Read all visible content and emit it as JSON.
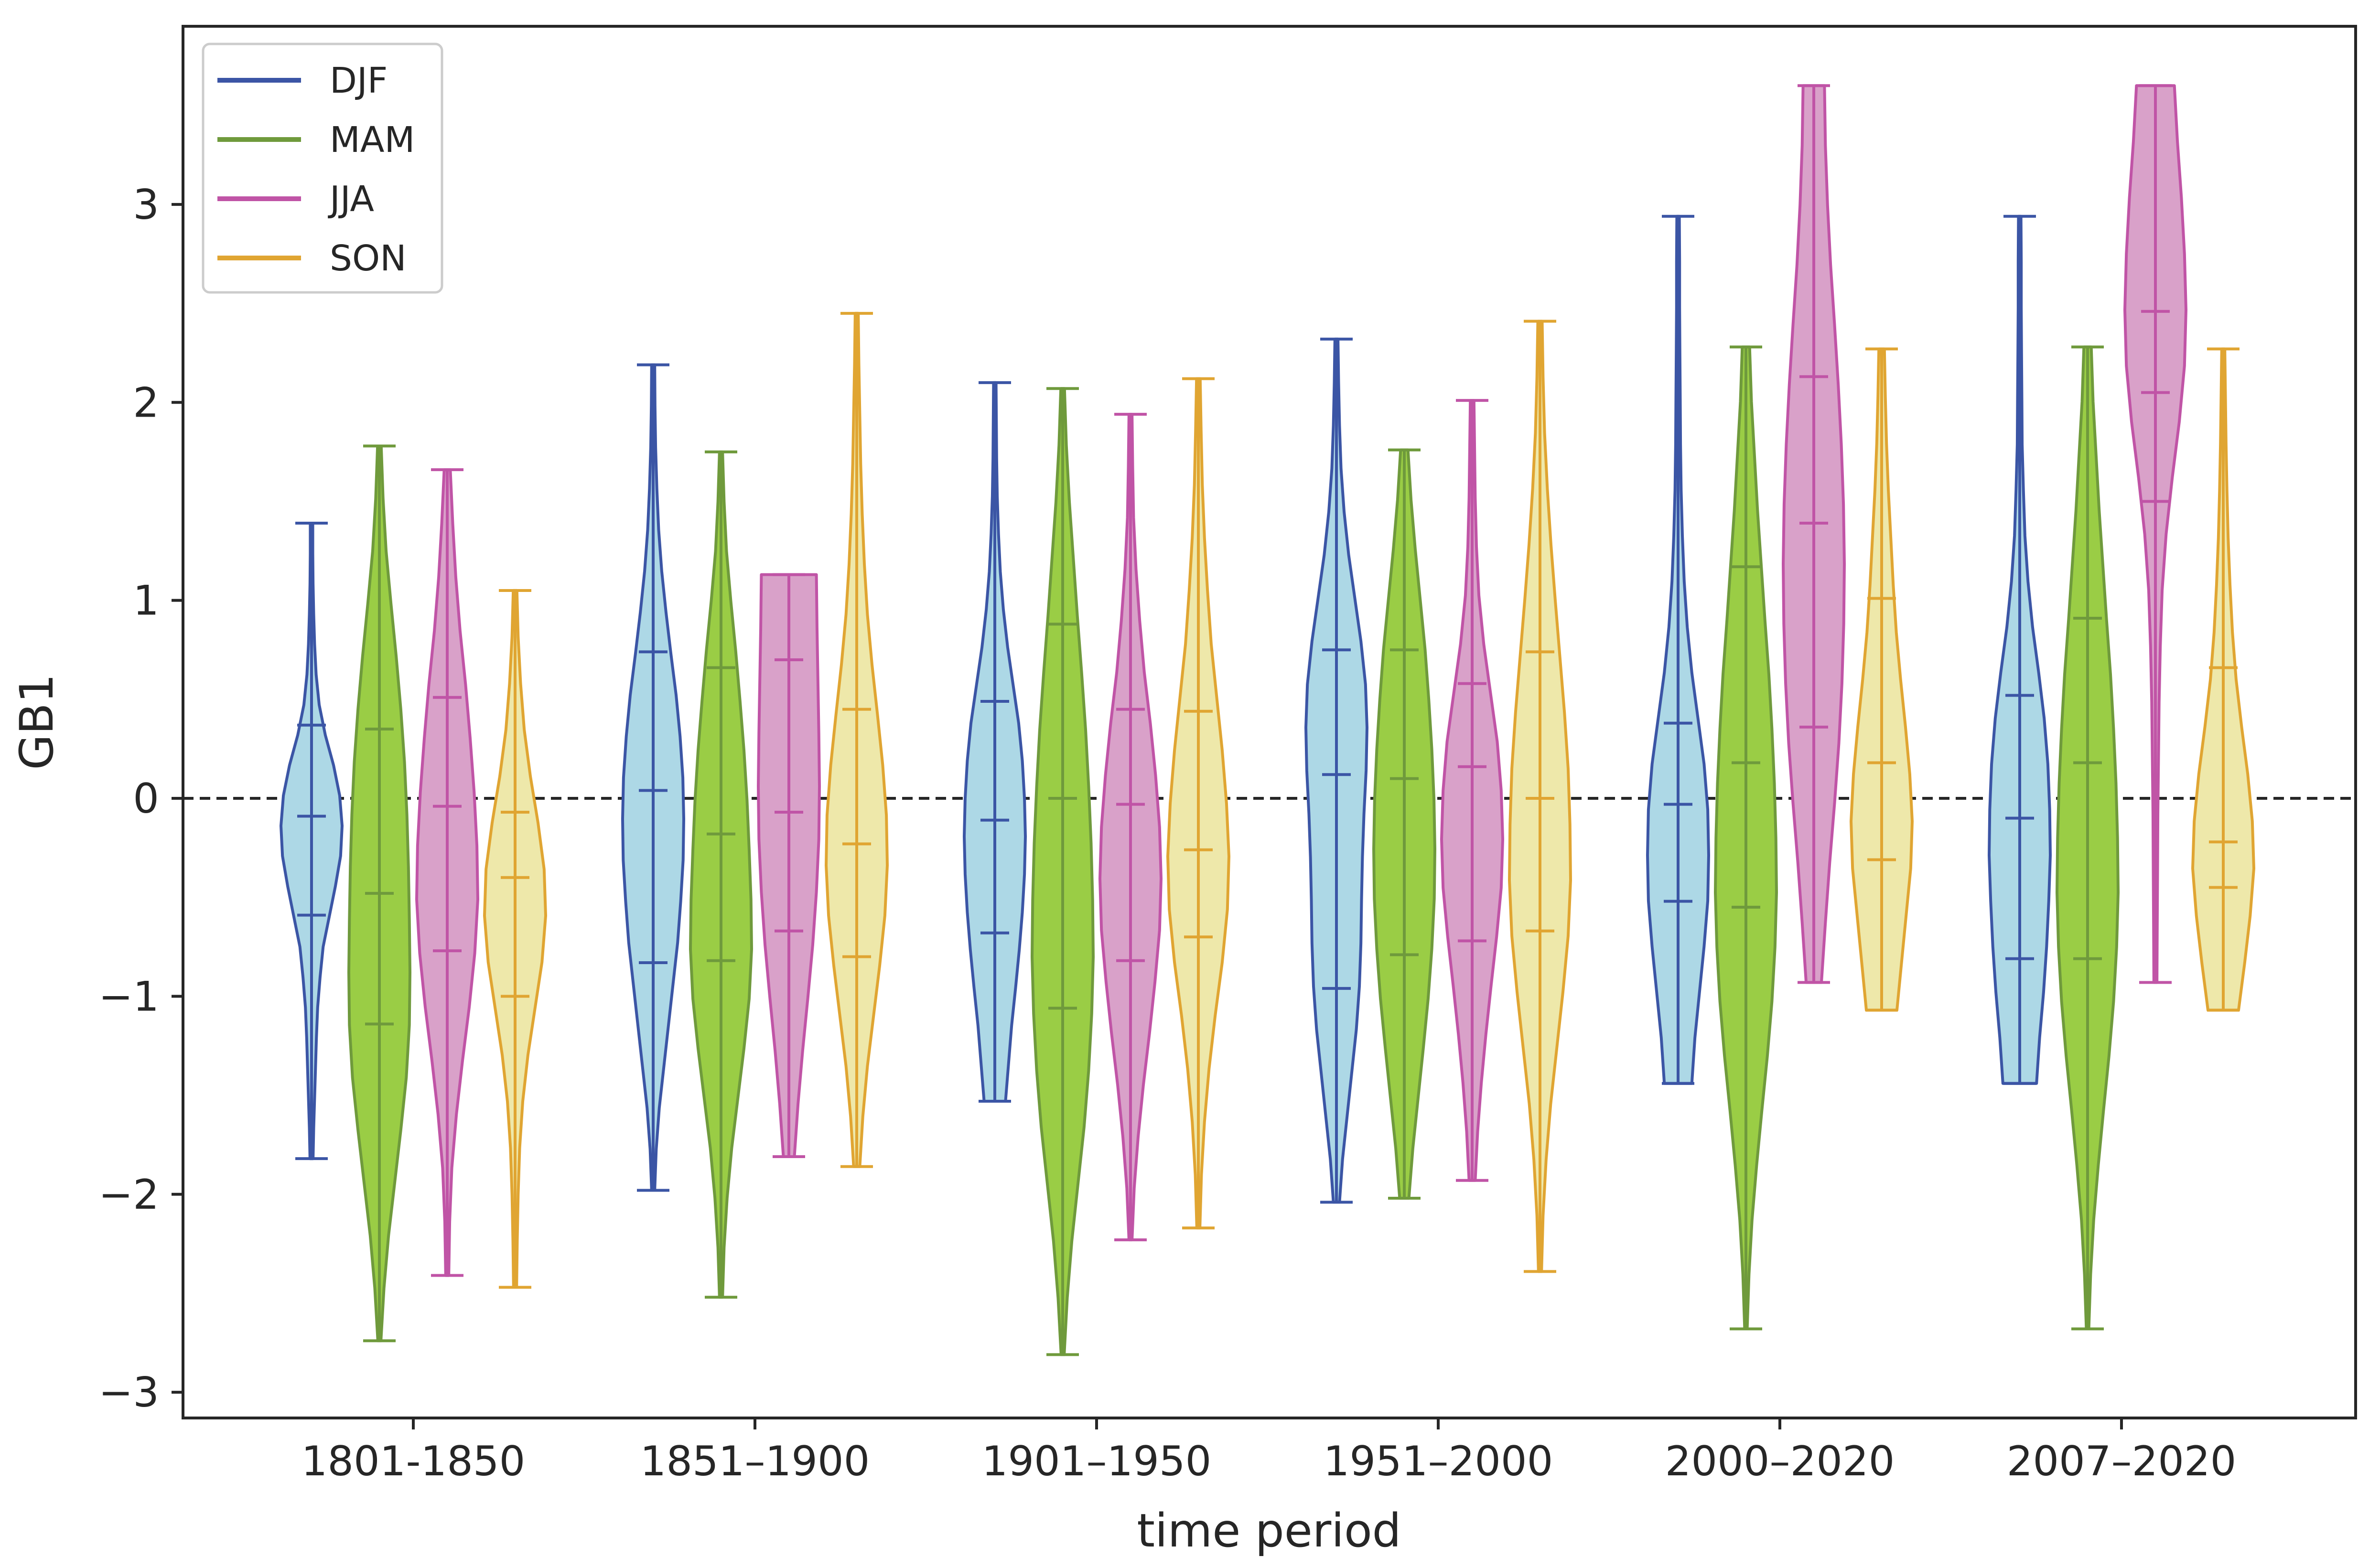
{
  "chart_data": {
    "type": "violin",
    "title": "",
    "xlabel": "time period",
    "ylabel": "GB1",
    "ylim": [
      -3.13,
      3.9
    ],
    "yticks": [
      -3,
      -2,
      -1,
      0,
      1,
      2,
      3
    ],
    "ytick_labels": [
      "−3",
      "−2",
      "−1",
      "0",
      "1",
      "2",
      "3"
    ],
    "reference_line": 0,
    "legend_position": "top-left",
    "categories": [
      "1801-1850",
      "1851–1900",
      "1901–1950",
      "1951–2000",
      "2000–2020",
      "2007–2020"
    ],
    "series": [
      {
        "name": "DJF",
        "line_color": "#3b55a5",
        "fill_color": "#add8e6",
        "violins": [
          {
            "min": -1.82,
            "max": 1.39,
            "q1": -0.59,
            "median": -0.09,
            "q3": 0.37,
            "profile": [
              0.05,
              0.07,
              0.1,
              0.13,
              0.16,
              0.2,
              0.28,
              0.38,
              0.58,
              0.78,
              0.95,
              1.0,
              0.92,
              0.72,
              0.45,
              0.25,
              0.15,
              0.1,
              0.07,
              0.05,
              0.04,
              0.04
            ]
          },
          {
            "min": -1.98,
            "max": 2.19,
            "q1": -0.83,
            "median": 0.04,
            "q3": 0.74,
            "profile": [
              0.05,
              0.1,
              0.2,
              0.35,
              0.5,
              0.65,
              0.8,
              0.9,
              0.98,
              1.0,
              0.97,
              0.88,
              0.75,
              0.58,
              0.42,
              0.28,
              0.18,
              0.12,
              0.08,
              0.06,
              0.05
            ]
          },
          {
            "min": -1.53,
            "max": 2.1,
            "q1": -0.68,
            "median": -0.11,
            "q3": 0.49,
            "profile": [
              0.35,
              0.45,
              0.55,
              0.68,
              0.8,
              0.9,
              0.97,
              1.0,
              0.97,
              0.9,
              0.78,
              0.6,
              0.42,
              0.28,
              0.18,
              0.12,
              0.08,
              0.06,
              0.05,
              0.04
            ]
          },
          {
            "min": -2.04,
            "max": 2.32,
            "q1": -0.96,
            "median": 0.12,
            "q3": 0.75,
            "profile": [
              0.1,
              0.2,
              0.35,
              0.5,
              0.65,
              0.75,
              0.8,
              0.82,
              0.85,
              0.9,
              0.97,
              1.0,
              0.95,
              0.8,
              0.6,
              0.4,
              0.25,
              0.15,
              0.1,
              0.07,
              0.05
            ]
          },
          {
            "min": -1.44,
            "max": 2.94,
            "q1": -0.52,
            "median": -0.03,
            "q3": 0.38,
            "profile": [
              0.45,
              0.55,
              0.7,
              0.85,
              0.97,
              1.0,
              0.97,
              0.85,
              0.65,
              0.45,
              0.3,
              0.2,
              0.14,
              0.1,
              0.08,
              0.07,
              0.06,
              0.05,
              0.05,
              0.04
            ]
          },
          {
            "min": -1.44,
            "max": 2.94,
            "q1": -0.81,
            "median": -0.1,
            "q3": 0.52,
            "profile": [
              0.55,
              0.65,
              0.78,
              0.88,
              0.95,
              1.0,
              0.98,
              0.92,
              0.8,
              0.62,
              0.42,
              0.27,
              0.17,
              0.12,
              0.08,
              0.07,
              0.06,
              0.05,
              0.05,
              0.04
            ]
          }
        ]
      },
      {
        "name": "MAM",
        "line_color": "#6f9a3c",
        "fill_color": "#9acd45",
        "violins": [
          {
            "min": -2.74,
            "max": 1.78,
            "q1": -1.14,
            "median": -0.48,
            "q3": 0.35,
            "profile": [
              0.05,
              0.15,
              0.3,
              0.5,
              0.7,
              0.88,
              0.98,
              1.0,
              0.98,
              0.95,
              0.9,
              0.82,
              0.7,
              0.55,
              0.38,
              0.22,
              0.12,
              0.06
            ]
          },
          {
            "min": -2.52,
            "max": 1.75,
            "q1": -0.82,
            "median": -0.18,
            "q3": 0.66,
            "profile": [
              0.05,
              0.1,
              0.2,
              0.35,
              0.55,
              0.75,
              0.92,
              1.0,
              0.98,
              0.92,
              0.85,
              0.75,
              0.62,
              0.48,
              0.32,
              0.18,
              0.1,
              0.05
            ]
          },
          {
            "min": -2.81,
            "max": 2.07,
            "q1": -1.06,
            "median": 0.0,
            "q3": 0.88,
            "profile": [
              0.05,
              0.15,
              0.3,
              0.5,
              0.7,
              0.85,
              0.95,
              1.0,
              0.98,
              0.93,
              0.85,
              0.75,
              0.62,
              0.48,
              0.35,
              0.22,
              0.12,
              0.06
            ]
          },
          {
            "min": -2.02,
            "max": 1.76,
            "q1": -0.79,
            "median": 0.1,
            "q3": 0.75,
            "profile": [
              0.15,
              0.28,
              0.45,
              0.62,
              0.78,
              0.9,
              0.98,
              1.0,
              0.97,
              0.9,
              0.8,
              0.68,
              0.52,
              0.36,
              0.22,
              0.12
            ]
          },
          {
            "min": -2.68,
            "max": 2.28,
            "q1": -0.55,
            "median": 0.18,
            "q3": 1.17,
            "profile": [
              0.04,
              0.1,
              0.2,
              0.35,
              0.52,
              0.7,
              0.85,
              0.95,
              1.0,
              0.98,
              0.93,
              0.85,
              0.75,
              0.62,
              0.5,
              0.38,
              0.28,
              0.18,
              0.12
            ]
          },
          {
            "min": -2.68,
            "max": 2.28,
            "q1": -0.81,
            "median": 0.18,
            "q3": 0.91,
            "profile": [
              0.04,
              0.1,
              0.2,
              0.35,
              0.52,
              0.7,
              0.85,
              0.95,
              1.0,
              0.98,
              0.93,
              0.85,
              0.75,
              0.62,
              0.5,
              0.38,
              0.28,
              0.18,
              0.12
            ]
          }
        ]
      },
      {
        "name": "JJA",
        "line_color": "#c054a6",
        "fill_color": "#d9a1c9",
        "violins": [
          {
            "min": -2.41,
            "max": 1.66,
            "q1": -0.77,
            "median": -0.04,
            "q3": 0.51,
            "profile": [
              0.05,
              0.08,
              0.15,
              0.3,
              0.5,
              0.72,
              0.9,
              1.0,
              0.97,
              0.88,
              0.75,
              0.6,
              0.42,
              0.28,
              0.18,
              0.1
            ]
          },
          {
            "min": -1.81,
            "max": 1.13,
            "q1": -0.67,
            "median": -0.07,
            "q3": 0.7,
            "profile": [
              0.18,
              0.3,
              0.45,
              0.62,
              0.78,
              0.9,
              0.98,
              1.0,
              0.98,
              0.95,
              0.92,
              0.9
            ]
          },
          {
            "min": -2.23,
            "max": 1.94,
            "q1": -0.82,
            "median": -0.03,
            "q3": 0.45,
            "profile": [
              0.05,
              0.12,
              0.25,
              0.42,
              0.62,
              0.8,
              0.95,
              1.0,
              0.95,
              0.82,
              0.65,
              0.45,
              0.3,
              0.18,
              0.1,
              0.07,
              0.05
            ]
          },
          {
            "min": -1.93,
            "max": 2.01,
            "q1": -0.72,
            "median": 0.16,
            "q3": 0.58,
            "profile": [
              0.1,
              0.18,
              0.3,
              0.45,
              0.62,
              0.8,
              0.95,
              1.0,
              0.95,
              0.82,
              0.6,
              0.38,
              0.22,
              0.14,
              0.1,
              0.08,
              0.06
            ]
          },
          {
            "min": -0.93,
            "max": 3.6,
            "q1": 0.36,
            "median": 1.39,
            "q3": 2.13,
            "profile": [
              0.25,
              0.38,
              0.52,
              0.68,
              0.82,
              0.92,
              0.98,
              1.0,
              0.97,
              0.9,
              0.8,
              0.68,
              0.55,
              0.45,
              0.38,
              0.35
            ]
          },
          {
            "min": -0.93,
            "max": 3.6,
            "q1": 1.5,
            "median": 2.05,
            "q3": 2.46,
            "profile": [
              0.05,
              0.06,
              0.07,
              0.08,
              0.1,
              0.12,
              0.16,
              0.22,
              0.35,
              0.55,
              0.78,
              0.95,
              1.0,
              0.95,
              0.85,
              0.72,
              0.62
            ]
          }
        ]
      },
      {
        "name": "SON",
        "line_color": "#e0a532",
        "fill_color": "#eee8aa",
        "violins": [
          {
            "min": -2.47,
            "max": 1.05,
            "q1": -1.0,
            "median": -0.4,
            "q3": -0.07,
            "profile": [
              0.05,
              0.07,
              0.1,
              0.15,
              0.25,
              0.42,
              0.65,
              0.88,
              1.0,
              0.95,
              0.75,
              0.5,
              0.3,
              0.18,
              0.1,
              0.06
            ]
          },
          {
            "min": -1.86,
            "max": 2.45,
            "q1": -0.8,
            "median": -0.23,
            "q3": 0.45,
            "profile": [
              0.1,
              0.2,
              0.35,
              0.55,
              0.75,
              0.92,
              1.0,
              0.97,
              0.85,
              0.68,
              0.5,
              0.35,
              0.25,
              0.18,
              0.13,
              0.1,
              0.07,
              0.05
            ]
          },
          {
            "min": -2.17,
            "max": 2.12,
            "q1": -0.7,
            "median": -0.26,
            "q3": 0.44,
            "profile": [
              0.05,
              0.1,
              0.2,
              0.35,
              0.55,
              0.78,
              0.95,
              1.0,
              0.92,
              0.78,
              0.6,
              0.42,
              0.3,
              0.2,
              0.13,
              0.09,
              0.06
            ]
          },
          {
            "min": -2.39,
            "max": 2.41,
            "q1": -0.67,
            "median": 0.0,
            "q3": 0.74,
            "profile": [
              0.05,
              0.1,
              0.2,
              0.35,
              0.55,
              0.75,
              0.92,
              1.0,
              0.98,
              0.92,
              0.8,
              0.65,
              0.5,
              0.36,
              0.24,
              0.15,
              0.1,
              0.07
            ]
          },
          {
            "min": -1.07,
            "max": 2.27,
            "q1": -0.31,
            "median": 0.18,
            "q3": 1.01,
            "profile": [
              0.5,
              0.65,
              0.8,
              0.95,
              1.0,
              0.92,
              0.78,
              0.62,
              0.48,
              0.38,
              0.3,
              0.22,
              0.16,
              0.12,
              0.09
            ]
          },
          {
            "min": -1.07,
            "max": 2.27,
            "q1": -0.45,
            "median": -0.22,
            "q3": 0.66,
            "profile": [
              0.5,
              0.7,
              0.88,
              1.0,
              0.95,
              0.8,
              0.6,
              0.42,
              0.3,
              0.22,
              0.16,
              0.12,
              0.09,
              0.07,
              0.05
            ]
          }
        ]
      }
    ]
  }
}
